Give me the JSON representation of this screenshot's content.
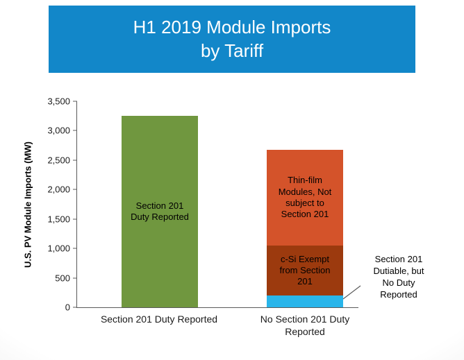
{
  "title": "H1 2019 Module Imports\nby Tariff",
  "annotation": {
    "text": "Section 201\nDutiable, but\nNo Duty\nReported"
  },
  "colors": {
    "title_banner": "#1287c9",
    "green": "#70973f",
    "light_blue": "#29b5ea",
    "dark_red": "#9c3a0e",
    "orange": "#d4532a",
    "axis": "#595959"
  },
  "chart_data": {
    "type": "bar",
    "stacked": true,
    "title": "H1 2019 Module Imports by Tariff",
    "xlabel": "",
    "ylabel": "U.S. PV Module Imports (MW)",
    "ylim": [
      0,
      3500
    ],
    "yticks": [
      0,
      500,
      1000,
      1500,
      2000,
      2500,
      3000,
      3500
    ],
    "grid": false,
    "legend": "none",
    "categories": [
      "Section 201 Duty Reported",
      "No Section 201 Duty Reported"
    ],
    "bars": [
      {
        "category": "Section 201 Duty Reported",
        "total": 3250,
        "segments": [
          {
            "name": "Section 201 Duty Reported",
            "label": "Section 201\nDuty Reported",
            "value": 3250,
            "color": "#70973f"
          }
        ]
      },
      {
        "category": "No Section 201 Duty Reported",
        "total": 2680,
        "segments": [
          {
            "name": "Section 201 Dutiable, but No Duty Reported",
            "label": "",
            "value": 200,
            "color": "#29b5ea"
          },
          {
            "name": "c-Si Exempt from Section 201",
            "label": "c-Si Exempt\nfrom Section\n201",
            "value": 850,
            "color": "#9c3a0e"
          },
          {
            "name": "Thin-film Modules, Not subject to Section 201",
            "label": "Thin-film\nModules, Not\nsubject to\nSection 201",
            "value": 1630,
            "color": "#d4532a"
          }
        ]
      }
    ]
  }
}
